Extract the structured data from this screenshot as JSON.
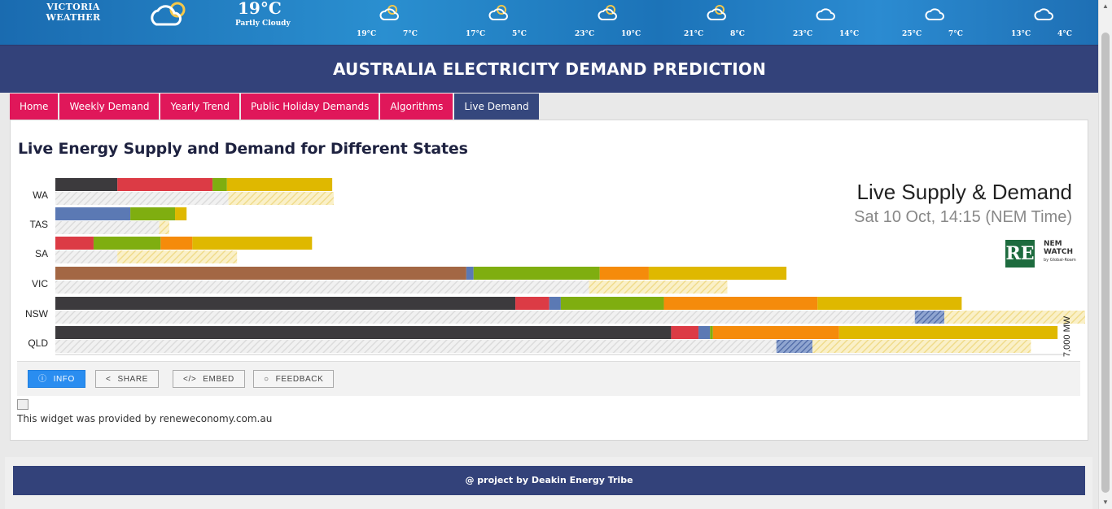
{
  "weather": {
    "title_line1": "VICTORIA",
    "title_line2": "WEATHER",
    "current_temp": "19°C",
    "current_condition": "Partly Cloudy",
    "days": [
      {
        "icon": "partly-sunny-icon",
        "hi": "19°C",
        "lo": "7°C"
      },
      {
        "icon": "partly-sunny-icon",
        "hi": "17°C",
        "lo": "5°C"
      },
      {
        "icon": "partly-sunny-icon",
        "hi": "23°C",
        "lo": "10°C"
      },
      {
        "icon": "partly-sunny-icon",
        "hi": "21°C",
        "lo": "8°C"
      },
      {
        "icon": "cloud-icon",
        "hi": "23°C",
        "lo": "14°C"
      },
      {
        "icon": "cloud-icon",
        "hi": "25°C",
        "lo": "7°C"
      },
      {
        "icon": "cloud-icon",
        "hi": "13°C",
        "lo": "4°C"
      }
    ]
  },
  "header": {
    "title": "AUSTRALIA ELECTRICITY DEMAND PREDICTION"
  },
  "tabs": [
    {
      "label": "Home"
    },
    {
      "label": "Weekly Demand"
    },
    {
      "label": "Yearly Trend"
    },
    {
      "label": "Public Holiday Demands"
    },
    {
      "label": "Algorithms"
    },
    {
      "label": "Live Demand",
      "active": true
    }
  ],
  "main": {
    "title": "Live Energy Supply and Demand for Different States",
    "widget_title": "Live Supply & Demand",
    "widget_time": "Sat 10 Oct, 14:15 (NEM Time)",
    "logo_re": "RE",
    "logo_nem_line1": "NEM",
    "logo_nem_line2": "WATCH",
    "logo_nem_line3": "by Global-Roam",
    "axis_scale_label": "7,000 MW",
    "provided": "This widget was provided by reneweconomy.com.au"
  },
  "toolbar": {
    "info": "INFO",
    "share": "SHARE",
    "embed": "EMBED",
    "feedback": "FEEDBACK"
  },
  "footer": {
    "text": "@ project by Deakin Energy Tribe"
  },
  "colors": {
    "coal_black": "#3c3a3d",
    "gas": "#dc3b45",
    "hydro": "#5b79b4",
    "wind": "#7fae10",
    "solar_rooftop": "#f58b0b",
    "solar": "#dfb800",
    "brown_coal": "#a36744",
    "demand_hatch": "#e3e3e3",
    "header": "#33427a",
    "tab": "#e0175a"
  },
  "chart_data": {
    "type": "bar",
    "orientation": "horizontal-stacked",
    "categories": [
      "WA",
      "TAS",
      "SA",
      "VIC",
      "NSW",
      "QLD"
    ],
    "unit": "MW",
    "scale_max": 7000,
    "supply": [
      {
        "state": "WA",
        "segments": [
          {
            "fuel": "coal",
            "value": 430
          },
          {
            "fuel": "gas",
            "value": 660
          },
          {
            "fuel": "wind",
            "value": 100
          },
          {
            "fuel": "solar",
            "value": 730
          }
        ]
      },
      {
        "state": "TAS",
        "segments": [
          {
            "fuel": "hydro",
            "value": 520
          },
          {
            "fuel": "wind",
            "value": 310
          },
          {
            "fuel": "solar",
            "value": 80
          }
        ]
      },
      {
        "state": "SA",
        "segments": [
          {
            "fuel": "gas",
            "value": 265
          },
          {
            "fuel": "wind",
            "value": 465
          },
          {
            "fuel": "solar_rooftop",
            "value": 220
          },
          {
            "fuel": "solar",
            "value": 830
          }
        ]
      },
      {
        "state": "VIC",
        "segments": [
          {
            "fuel": "brown_coal",
            "value": 2850
          },
          {
            "fuel": "hydro",
            "value": 50
          },
          {
            "fuel": "wind",
            "value": 875
          },
          {
            "fuel": "solar_rooftop",
            "value": 340
          },
          {
            "fuel": "solar",
            "value": 955
          }
        ]
      },
      {
        "state": "NSW",
        "segments": [
          {
            "fuel": "coal",
            "value": 3190
          },
          {
            "fuel": "gas",
            "value": 235
          },
          {
            "fuel": "hydro",
            "value": 80
          },
          {
            "fuel": "wind",
            "value": 715
          },
          {
            "fuel": "solar_rooftop",
            "value": 1065
          },
          {
            "fuel": "solar",
            "value": 1000
          }
        ]
      },
      {
        "state": "QLD",
        "segments": [
          {
            "fuel": "coal",
            "value": 4270
          },
          {
            "fuel": "gas",
            "value": 190
          },
          {
            "fuel": "hydro",
            "value": 80
          },
          {
            "fuel": "wind",
            "value": 20
          },
          {
            "fuel": "solar_rooftop",
            "value": 875
          },
          {
            "fuel": "solar",
            "value": 1515
          }
        ]
      }
    ],
    "demand": [
      {
        "state": "WA",
        "demand": 1200,
        "rooftop": 730,
        "import": 0
      },
      {
        "state": "TAS",
        "demand": 720,
        "rooftop": 70,
        "import": 0
      },
      {
        "state": "SA",
        "demand": 430,
        "rooftop": 830,
        "import": 0
      },
      {
        "state": "VIC",
        "demand": 3700,
        "rooftop": 960,
        "import": 0
      },
      {
        "state": "NSW",
        "demand": 5960,
        "rooftop": 1000,
        "import": 205
      },
      {
        "state": "QLD",
        "demand": 5000,
        "rooftop": 1515,
        "import": 250
      }
    ]
  }
}
